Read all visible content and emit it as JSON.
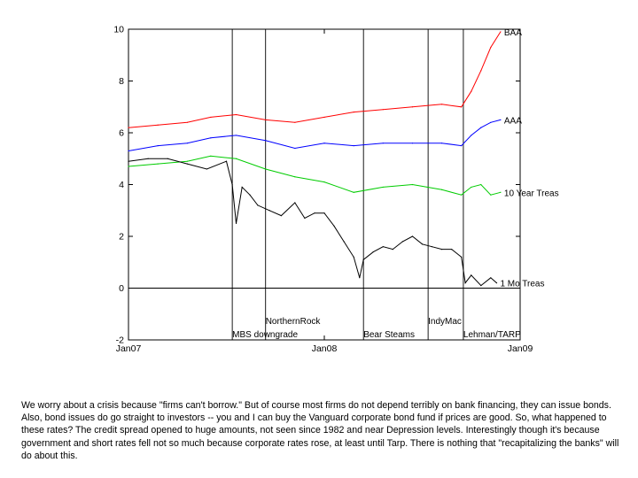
{
  "chart_data": {
    "type": "line",
    "x_range": [
      "Jan07",
      "Jan09"
    ],
    "xlim_years": [
      2007.0,
      2009.0
    ],
    "ylim": [
      -2,
      10
    ],
    "y_ticks": [
      "-2",
      "0",
      "2",
      "4",
      "6",
      "8",
      "10"
    ],
    "x_ticks": [
      {
        "label": "Jan07",
        "x": 2007.0
      },
      {
        "label": "Jan08",
        "x": 2008.0
      },
      {
        "label": "Jan09",
        "x": 2009.0
      }
    ],
    "grid": false,
    "series": [
      {
        "name": "BAA",
        "color": "#ff0000",
        "x": [
          2007.0,
          2007.15,
          2007.3,
          2007.42,
          2007.55,
          2007.7,
          2007.85,
          2008.0,
          2008.15,
          2008.3,
          2008.45,
          2008.6,
          2008.7,
          2008.75,
          2008.8,
          2008.85,
          2008.9
        ],
        "y": [
          6.2,
          6.3,
          6.4,
          6.6,
          6.7,
          6.5,
          6.4,
          6.6,
          6.8,
          6.9,
          7.0,
          7.1,
          7.0,
          7.6,
          8.4,
          9.3,
          9.9
        ]
      },
      {
        "name": "AAA",
        "color": "#0000ff",
        "x": [
          2007.0,
          2007.15,
          2007.3,
          2007.42,
          2007.55,
          2007.7,
          2007.85,
          2008.0,
          2008.15,
          2008.3,
          2008.45,
          2008.6,
          2008.7,
          2008.75,
          2008.8,
          2008.85,
          2008.9
        ],
        "y": [
          5.3,
          5.5,
          5.6,
          5.8,
          5.9,
          5.7,
          5.4,
          5.6,
          5.5,
          5.6,
          5.6,
          5.6,
          5.5,
          5.9,
          6.2,
          6.4,
          6.5
        ],
        "label": "AAA"
      },
      {
        "name": "10 Year Treas",
        "color": "#00cc00",
        "x": [
          2007.0,
          2007.15,
          2007.3,
          2007.42,
          2007.55,
          2007.7,
          2007.85,
          2008.0,
          2008.15,
          2008.3,
          2008.45,
          2008.6,
          2008.7,
          2008.75,
          2008.8,
          2008.85,
          2008.9
        ],
        "y": [
          4.7,
          4.8,
          4.9,
          5.1,
          5.0,
          4.6,
          4.3,
          4.1,
          3.7,
          3.9,
          4.0,
          3.8,
          3.6,
          3.9,
          4.0,
          3.6,
          3.7
        ]
      },
      {
        "name": "1 Mo Treas",
        "color": "#000000",
        "x": [
          2007.0,
          2007.1,
          2007.2,
          2007.3,
          2007.4,
          2007.5,
          2007.53,
          2007.55,
          2007.58,
          2007.62,
          2007.66,
          2007.72,
          2007.78,
          2007.85,
          2007.9,
          2007.95,
          2008.0,
          2008.05,
          2008.1,
          2008.15,
          2008.18,
          2008.2,
          2008.25,
          2008.3,
          2008.35,
          2008.4,
          2008.45,
          2008.5,
          2008.55,
          2008.6,
          2008.65,
          2008.7,
          2008.72,
          2008.75,
          2008.8,
          2008.85,
          2008.88
        ],
        "y": [
          4.9,
          5.0,
          5.0,
          4.8,
          4.6,
          4.9,
          4.0,
          2.5,
          3.9,
          3.6,
          3.2,
          3.0,
          2.8,
          3.3,
          2.7,
          2.9,
          2.9,
          2.4,
          1.8,
          1.2,
          0.4,
          1.1,
          1.4,
          1.6,
          1.5,
          1.8,
          2.0,
          1.7,
          1.6,
          1.5,
          1.5,
          1.2,
          0.2,
          0.5,
          0.1,
          0.4,
          0.2
        ]
      }
    ],
    "series_labels": [
      {
        "text": "BAA",
        "series": "BAA"
      },
      {
        "text": "AAA",
        "series": "AAA"
      },
      {
        "text": "10 Year Treas",
        "series": "10 Year Treas"
      },
      {
        "text": "1 Mo Treas",
        "series": "1 Mo Treas"
      }
    ],
    "events": [
      {
        "label": "MBS downgrade",
        "x": 2007.53,
        "level": "low"
      },
      {
        "label": "NorthernRock",
        "x": 2007.7,
        "level": "high"
      },
      {
        "label": "Bear Steams",
        "x": 2008.2,
        "level": "low"
      },
      {
        "label": "IndyMac",
        "x": 2008.53,
        "level": "high"
      },
      {
        "label": "Lehman/TARP",
        "x": 2008.71,
        "level": "low"
      }
    ],
    "zero_line": 0
  },
  "caption": "We worry about a crisis because \"firms can't borrow.\" But of course most firms do not depend terribly on bank financing, they can issue bonds. Also, bond issues do go straight to investors -- you and I can buy the Vanguard corporate bond fund if prices are good. So, what happened to these rates? The credit spread opened to huge amounts, not seen since 1982 and near Depression levels. Interestingly though it's because government and short rates fell not so much because corporate rates rose, at least until Tarp. There is nothing that \"recapitalizing the banks\" will do about this."
}
